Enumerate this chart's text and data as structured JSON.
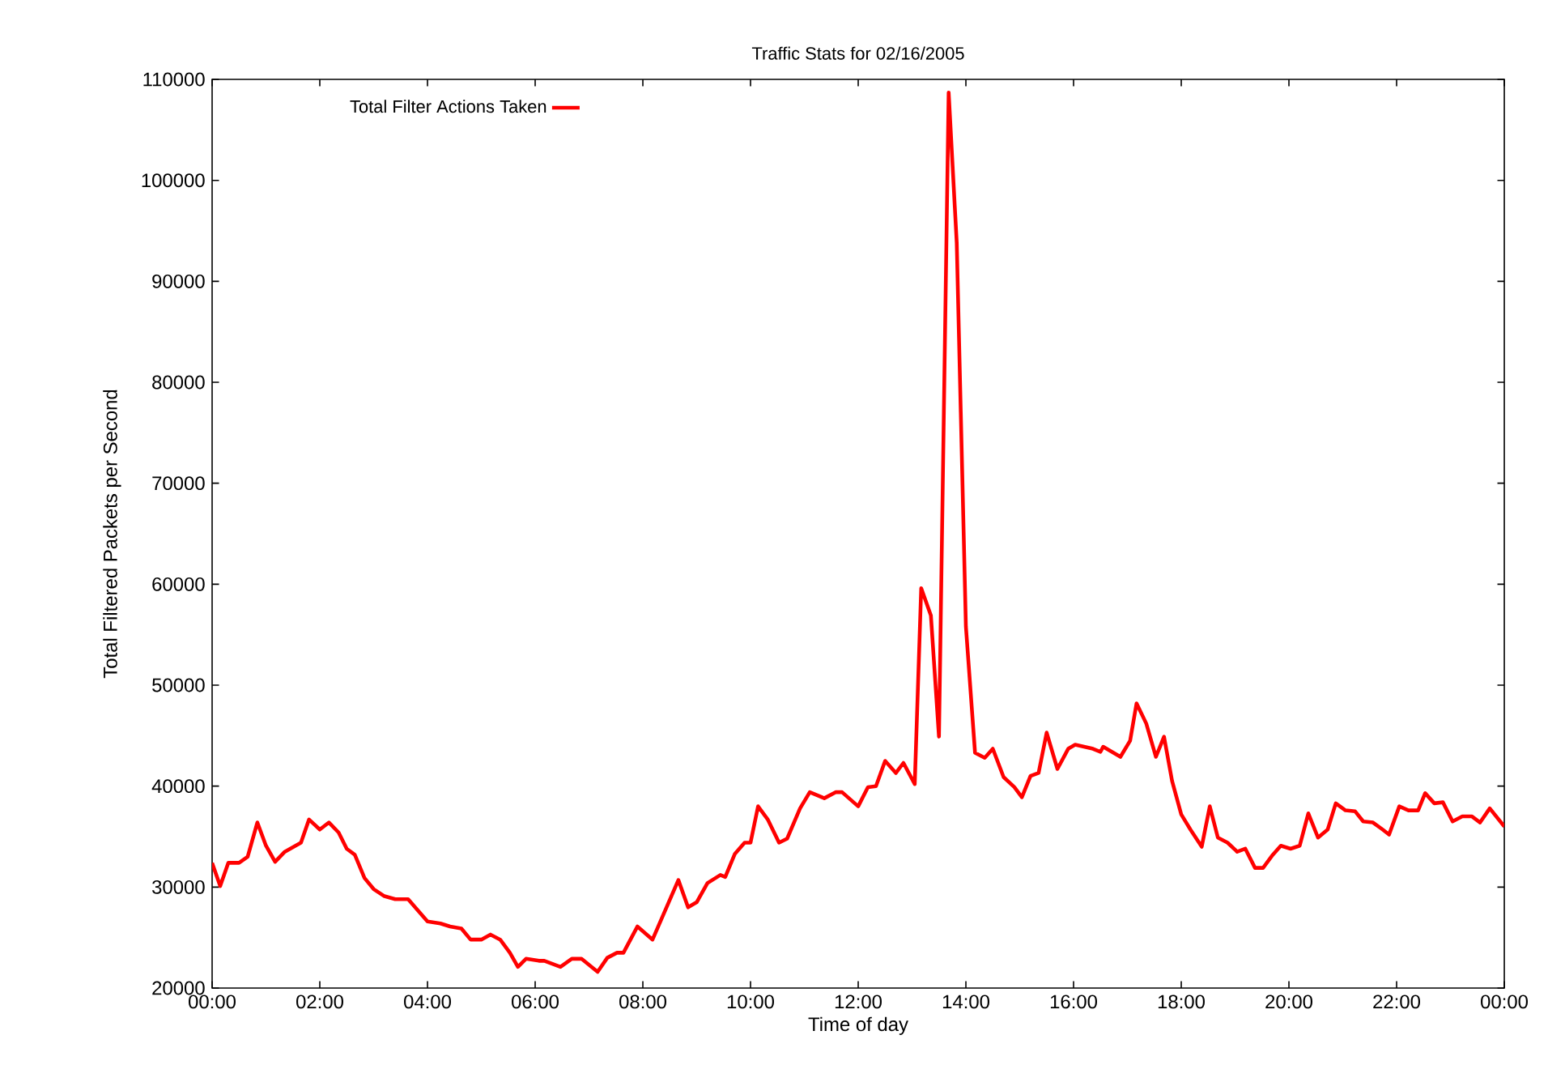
{
  "chart_data": {
    "type": "line",
    "title": "Traffic Stats for 02/16/2005",
    "xlabel": "Time of day",
    "ylabel": "Total Filtered Packets per Second",
    "x": [
      0.0,
      0.15,
      0.3,
      0.5,
      0.66,
      0.84,
      1.0,
      1.17,
      1.35,
      1.65,
      1.8,
      2.0,
      2.17,
      2.35,
      2.5,
      2.65,
      2.83,
      3.0,
      3.2,
      3.4,
      3.64,
      3.82,
      4.0,
      4.24,
      4.42,
      4.63,
      4.8,
      5.0,
      5.17,
      5.35,
      5.53,
      5.68,
      5.83,
      6.07,
      6.17,
      6.47,
      6.68,
      6.86,
      7.16,
      7.34,
      7.52,
      7.64,
      7.9,
      8.18,
      8.66,
      8.84,
      9.0,
      9.2,
      9.44,
      9.53,
      9.71,
      9.89,
      10.0,
      10.14,
      10.32,
      10.53,
      10.68,
      10.92,
      11.1,
      11.37,
      11.58,
      11.7,
      12.0,
      12.18,
      12.33,
      12.5,
      12.7,
      12.84,
      13.05,
      13.17,
      13.35,
      13.5,
      13.68,
      13.83,
      14.0,
      14.17,
      14.35,
      14.5,
      14.7,
      14.9,
      15.04,
      15.2,
      15.35,
      15.5,
      15.7,
      15.9,
      16.03,
      16.36,
      16.5,
      16.55,
      16.87,
      17.05,
      17.17,
      17.35,
      17.53,
      17.68,
      17.83,
      18.0,
      18.17,
      18.38,
      18.53,
      18.68,
      18.86,
      19.04,
      19.19,
      19.37,
      19.52,
      19.7,
      19.85,
      20.03,
      20.2,
      20.36,
      20.54,
      20.72,
      20.87,
      21.05,
      21.23,
      21.38,
      21.56,
      21.74,
      21.86,
      22.05,
      22.22,
      22.4,
      22.53,
      22.7,
      22.86,
      23.04,
      23.22,
      23.4,
      23.55,
      23.73,
      24.0
    ],
    "series": [
      {
        "name": "Total Filter Actions Taken",
        "color": "#ff0000",
        "values": [
          32400,
          30100,
          32400,
          32400,
          33000,
          36400,
          34100,
          32500,
          33500,
          34400,
          36700,
          35700,
          36400,
          35400,
          33800,
          33200,
          30900,
          29800,
          29100,
          28800,
          28800,
          27700,
          26600,
          26400,
          26100,
          25900,
          24800,
          24800,
          25300,
          24800,
          23500,
          22100,
          22900,
          22700,
          22700,
          22100,
          22900,
          22900,
          21600,
          23000,
          23500,
          23500,
          26100,
          24800,
          30700,
          28000,
          28500,
          30400,
          31200,
          31000,
          33300,
          34400,
          34400,
          38000,
          36700,
          34400,
          34800,
          37800,
          39400,
          38800,
          39400,
          39400,
          38000,
          39900,
          40000,
          42500,
          41300,
          42300,
          40200,
          59600,
          56900,
          44900,
          108700,
          93800,
          55800,
          43300,
          42800,
          43700,
          40900,
          39900,
          38900,
          41000,
          41300,
          45300,
          41700,
          43700,
          44100,
          43700,
          43400,
          43900,
          42900,
          44500,
          48200,
          46200,
          42900,
          44900,
          40500,
          37200,
          35700,
          34000,
          38000,
          34900,
          34400,
          33500,
          33800,
          31900,
          31900,
          33200,
          34100,
          33800,
          34100,
          37300,
          34900,
          35700,
          38300,
          37600,
          37500,
          36500,
          36400,
          35700,
          35200,
          38000,
          37600,
          37600,
          39300,
          38300,
          38400,
          36500,
          37000,
          37000,
          36400,
          37800,
          36000
        ]
      }
    ],
    "xlim": [
      0,
      24
    ],
    "ylim": [
      20000,
      110000
    ],
    "xticks": [
      {
        "value": 0,
        "label": "00:00"
      },
      {
        "value": 2,
        "label": "02:00"
      },
      {
        "value": 4,
        "label": "04:00"
      },
      {
        "value": 6,
        "label": "06:00"
      },
      {
        "value": 8,
        "label": "08:00"
      },
      {
        "value": 10,
        "label": "10:00"
      },
      {
        "value": 12,
        "label": "12:00"
      },
      {
        "value": 14,
        "label": "14:00"
      },
      {
        "value": 16,
        "label": "16:00"
      },
      {
        "value": 18,
        "label": "18:00"
      },
      {
        "value": 20,
        "label": "20:00"
      },
      {
        "value": 22,
        "label": "22:00"
      },
      {
        "value": 24,
        "label": "00:00"
      }
    ],
    "yticks": [
      20000,
      30000,
      40000,
      50000,
      60000,
      70000,
      80000,
      90000,
      100000,
      110000
    ],
    "legend": "top left",
    "grid": false,
    "marker": "none",
    "line_style": "solid"
  }
}
